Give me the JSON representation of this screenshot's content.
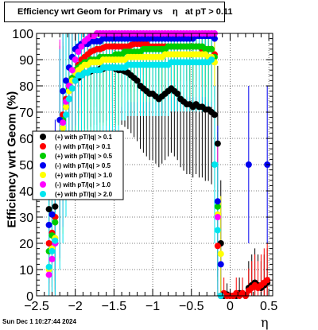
{
  "title": "Efficiency wrt Geom for Primary vs    η   at pT > 0.11",
  "timestamp": "Sun Dec  1 10:27:44 2024",
  "chart_data": {
    "type": "scatter",
    "title": "Efficiency wrt Geom for Primary vs    η   at pT > 0.11",
    "xlabel": "η",
    "ylabel": "Efficiency wrt Geom (%)",
    "xlim": [
      -2.5,
      0.55
    ],
    "ylim": [
      0,
      100
    ],
    "xticks": [
      -2.5,
      -2,
      -1.5,
      -1,
      -0.5,
      0,
      0.5
    ],
    "xtick_labels": [
      "−2.5",
      "−2",
      "−1.5",
      "−1",
      "−0.5",
      "0",
      "0.5"
    ],
    "yticks": [
      0,
      10,
      20,
      30,
      40,
      50,
      60,
      70,
      80,
      90,
      100
    ],
    "ytick_labels": [
      "0",
      "10",
      "20",
      "30",
      "40",
      "50",
      "60",
      "70",
      "80",
      "90",
      "100"
    ],
    "grid": true,
    "legend_position": "middle-left",
    "series": [
      {
        "name": "(+) with pT/|q| > 0.1",
        "color": "#000000",
        "marker": "circle",
        "x": [
          -2.34,
          -2.3,
          -2.26,
          -2.2,
          -2.16,
          -2.12,
          -2.08,
          -2.04,
          -2.0,
          -1.96,
          -1.92,
          -1.88,
          -1.84,
          -1.8,
          -1.76,
          -1.72,
          -1.68,
          -1.64,
          -1.6,
          -1.56,
          -1.52,
          -1.48,
          -1.44,
          -1.4,
          -1.36,
          -1.32,
          -1.28,
          -1.24,
          -1.2,
          -1.16,
          -1.12,
          -1.08,
          -1.04,
          -1.0,
          -0.96,
          -0.92,
          -0.88,
          -0.84,
          -0.8,
          -0.76,
          -0.72,
          -0.68,
          -0.64,
          -0.6,
          -0.56,
          -0.52,
          -0.48,
          -0.44,
          -0.4,
          -0.36,
          -0.32,
          -0.28,
          -0.24,
          -0.2,
          -0.16,
          -0.12,
          -0.08,
          -0.04,
          0.0,
          0.04,
          0.08,
          0.12,
          0.16,
          0.2,
          0.24,
          0.28,
          0.32,
          0.36,
          0.4,
          0.44,
          0.48
        ],
        "y": [
          33,
          31,
          34,
          55,
          67,
          72,
          75,
          79,
          82,
          83,
          84,
          85,
          85,
          85.5,
          86,
          86,
          86.5,
          86.5,
          87,
          87,
          87,
          86.5,
          86,
          86,
          85.5,
          85,
          84,
          83,
          82,
          80,
          79,
          78,
          77,
          77,
          76,
          75,
          76,
          77,
          78,
          79,
          78,
          77,
          75,
          74,
          73,
          73,
          72,
          73,
          72,
          72,
          71,
          71,
          70,
          69,
          58,
          20,
          0,
          0.5,
          0,
          0,
          0,
          1,
          1,
          0,
          3,
          4,
          5,
          4,
          3,
          4,
          5
        ]
      },
      {
        "name": "(-) with pT/|q| > 0.1",
        "color": "#ff0000",
        "marker": "circle",
        "x": [
          -2.34,
          -2.3,
          -2.26,
          -2.2,
          -2.16,
          -2.12,
          -2.08,
          -2.04,
          -2.0,
          -1.96,
          -1.92,
          -1.88,
          -1.84,
          -1.8,
          -1.76,
          -1.72,
          -1.68,
          -1.64,
          -1.6,
          -1.56,
          -1.52,
          -1.48,
          -1.44,
          -1.4,
          -1.36,
          -1.32,
          -1.28,
          -1.24,
          -1.2,
          -1.16,
          -1.12,
          -1.08,
          -1.04,
          -1.0,
          -0.96,
          -0.92,
          -0.88,
          -0.84,
          -0.8,
          -0.76,
          -0.72,
          -0.68,
          -0.64,
          -0.6,
          -0.56,
          -0.52,
          -0.48,
          -0.44,
          -0.4,
          -0.36,
          -0.32,
          -0.28,
          -0.24,
          -0.2,
          -0.16,
          -0.12,
          -0.08,
          -0.04,
          0.0,
          0.04,
          0.08,
          0.12,
          0.16,
          0.2,
          0.24,
          0.28,
          0.32,
          0.36,
          0.4,
          0.44,
          0.48
        ],
        "y": [
          20,
          24,
          30,
          60,
          69,
          75,
          80,
          83,
          86,
          88,
          90,
          91,
          92,
          93,
          93.5,
          94,
          94,
          94.5,
          95,
          95,
          95,
          95,
          95,
          95,
          95,
          95,
          95.5,
          96,
          96,
          96,
          96,
          96,
          95,
          95,
          95,
          95,
          95,
          95,
          95,
          95,
          95,
          95,
          95,
          95,
          95,
          95,
          95,
          95,
          95,
          94,
          94,
          94,
          94,
          92,
          19,
          0,
          1,
          0,
          0,
          0,
          1,
          0,
          1,
          0,
          2,
          3,
          4,
          3,
          4,
          5,
          6
        ]
      },
      {
        "name": "(+) with pT/|q| > 0.5",
        "color": "#00cc00",
        "marker": "circle",
        "x": [
          -2.34,
          -2.3,
          -2.26,
          -2.2,
          -2.16,
          -2.12,
          -2.08,
          -2.04,
          -2.0,
          -1.96,
          -1.92,
          -1.88,
          -1.84,
          -1.8,
          -1.76,
          -1.72,
          -1.68,
          -1.64,
          -1.6,
          -1.56,
          -1.52,
          -1.48,
          -1.44,
          -1.4,
          -1.36,
          -1.32,
          -1.28,
          -1.24,
          -1.2,
          -1.16,
          -1.12,
          -1.08,
          -1.04,
          -1.0,
          -0.96,
          -0.92,
          -0.88,
          -0.84,
          -0.8,
          -0.76,
          -0.72,
          -0.68,
          -0.64,
          -0.6,
          -0.56,
          -0.52,
          -0.48,
          -0.44,
          -0.4,
          -0.36,
          -0.32,
          -0.28,
          -0.24,
          -0.2,
          -0.16,
          -0.12
        ],
        "y": [
          17,
          23,
          28,
          58,
          67,
          74,
          79,
          83,
          86,
          87,
          88,
          89,
          89,
          90,
          90,
          90,
          91,
          91,
          91,
          91,
          91,
          92,
          92,
          92,
          93,
          93,
          93,
          93,
          93,
          93,
          94,
          94,
          94,
          94,
          94,
          94,
          94,
          94,
          95,
          95,
          95,
          95,
          95,
          95,
          95,
          95,
          95,
          95,
          95,
          95,
          94,
          94,
          94,
          91,
          34,
          0
        ]
      },
      {
        "name": "(-) with pT/|q| > 0.5",
        "color": "#0000ee",
        "marker": "circle",
        "x": [
          -2.34,
          -2.3,
          -2.26,
          -2.2,
          -2.16,
          -2.12,
          -2.08,
          -2.04,
          -2.0,
          -1.96,
          -1.92,
          -1.88,
          -1.84,
          -1.8,
          -1.76,
          -1.72,
          -1.68,
          -1.64,
          -1.6,
          -1.56,
          -1.52,
          -1.48,
          -1.44,
          -1.4,
          -1.36,
          -1.32,
          -1.28,
          -1.24,
          -1.2,
          -1.16,
          -1.12,
          -1.08,
          -1.04,
          -1.0,
          -0.96,
          -0.92,
          -0.88,
          -0.84,
          -0.8,
          -0.76,
          -0.72,
          -0.68,
          -0.64,
          -0.6,
          -0.56,
          -0.52,
          -0.48,
          -0.44,
          -0.4,
          -0.36,
          -0.32,
          -0.28,
          -0.24,
          -0.2,
          -0.16,
          -0.12,
          0.24,
          0.48
        ],
        "y": [
          27,
          31,
          38,
          67,
          78,
          82,
          87,
          91,
          94,
          95,
          96,
          96,
          96,
          97,
          97,
          97,
          97,
          98,
          98,
          98,
          98,
          98,
          98,
          98,
          98,
          98,
          98,
          98,
          98,
          98,
          98,
          98,
          98,
          98,
          98,
          98,
          98,
          98,
          98,
          98,
          98,
          98,
          98,
          98,
          98,
          98,
          98,
          99,
          99,
          99,
          99,
          99,
          99,
          98,
          36,
          12,
          50,
          50
        ]
      },
      {
        "name": "(+) with pT/|q| > 1.0",
        "color": "#ffff00",
        "marker": "circle",
        "x": [
          -2.34,
          -2.3,
          -2.26,
          -2.2,
          -2.16,
          -2.12,
          -2.08,
          -2.04,
          -2.0,
          -1.96,
          -1.92,
          -1.88,
          -1.84,
          -1.8,
          -1.76,
          -1.72,
          -1.68,
          -1.64,
          -1.6,
          -1.56,
          -1.52,
          -1.48,
          -1.44,
          -1.4,
          -1.36,
          -1.32,
          -1.28,
          -1.24,
          -1.2,
          -1.16,
          -1.12,
          -1.08,
          -1.04,
          -1.0,
          -0.96,
          -0.92,
          -0.88,
          -0.84,
          -0.8,
          -0.76,
          -0.72,
          -0.68,
          -0.64,
          -0.6,
          -0.56,
          -0.52,
          -0.48,
          -0.44,
          -0.4,
          -0.36,
          -0.32,
          -0.28,
          -0.24,
          -0.2,
          -0.16,
          -0.12
        ],
        "y": [
          10,
          18,
          22,
          55,
          64,
          72,
          78,
          82,
          85,
          86,
          87,
          88,
          88,
          89,
          89,
          89,
          89,
          90,
          90,
          90,
          90,
          90,
          90,
          90,
          90,
          91,
          91,
          91,
          91,
          91,
          91,
          91,
          91,
          91,
          91,
          91,
          91,
          92,
          92,
          92,
          92,
          92,
          92,
          92,
          92,
          92,
          92,
          92,
          92,
          92,
          92,
          91,
          91,
          89,
          31,
          16
        ]
      },
      {
        "name": "(-) with pT/|q| > 1.0",
        "color": "#ff00ff",
        "marker": "circle",
        "x": [
          -2.34,
          -2.3,
          -2.26,
          -2.2,
          -2.16,
          -2.12,
          -2.08,
          -2.04,
          -2.0,
          -1.96,
          -1.92,
          -1.88,
          -1.84,
          -1.8,
          -1.76,
          -1.72,
          -1.68,
          -1.64,
          -1.6,
          -1.56,
          -1.52,
          -1.48,
          -1.44,
          -1.4,
          -1.36,
          -1.32,
          -1.28,
          -1.24,
          -1.2,
          -1.16,
          -1.12,
          -1.08,
          -1.04,
          -1.0,
          -0.96,
          -0.92,
          -0.88,
          -0.84,
          -0.8,
          -0.76,
          -0.72,
          -0.68,
          -0.64,
          -0.6,
          -0.56,
          -0.52,
          -0.48,
          -0.44,
          -0.4,
          -0.36,
          -0.32,
          -0.28,
          -0.24,
          -0.2,
          -0.16,
          -0.12
        ],
        "y": [
          8,
          14,
          20,
          56,
          66,
          74,
          80,
          86,
          90,
          93,
          95,
          97,
          98,
          99,
          99,
          100,
          100,
          100,
          100,
          100,
          100,
          100,
          100,
          100,
          100,
          100,
          100,
          100,
          100,
          100,
          100,
          100,
          100,
          100,
          100,
          100,
          100,
          100,
          100,
          100,
          100,
          100,
          100,
          100,
          100,
          100,
          100,
          100,
          100,
          100,
          100,
          100,
          100,
          100,
          30,
          0
        ]
      },
      {
        "name": "(+) with pT/|q| > 2.0",
        "color": "#00e5ee",
        "marker": "circle",
        "x": [
          -2.34,
          -2.3,
          -2.26,
          -2.2,
          -2.16,
          -2.12,
          -2.08,
          -2.04,
          -2.0,
          -1.96,
          -1.92,
          -1.88,
          -1.84,
          -1.8,
          -1.76,
          -1.72,
          -1.68,
          -1.64,
          -1.6,
          -1.56,
          -1.52,
          -1.48,
          -1.44,
          -1.4,
          -1.36,
          -1.32,
          -1.28,
          -1.24,
          -1.2,
          -1.16,
          -1.12,
          -1.08,
          -1.04,
          -1.0,
          -0.96,
          -0.92,
          -0.88,
          -0.84,
          -0.8,
          -0.76,
          -0.72,
          -0.68,
          -0.64,
          -0.6,
          -0.56,
          -0.52,
          -0.48,
          -0.44,
          -0.4,
          -0.36,
          -0.32,
          -0.28,
          -0.24,
          -0.2,
          -0.16,
          -0.12
        ],
        "y": [
          11,
          17,
          21,
          52,
          61,
          69,
          75,
          79,
          82,
          84,
          84,
          85,
          85,
          86,
          86,
          86,
          86,
          87,
          87,
          87,
          87,
          87,
          87,
          87,
          87,
          88,
          88,
          88,
          88,
          88,
          88,
          88,
          88,
          88,
          88,
          88,
          88,
          88,
          88,
          89,
          89,
          89,
          89,
          89,
          89,
          89,
          89,
          89,
          89,
          89,
          89,
          89,
          90,
          50,
          25,
          0
        ]
      }
    ]
  }
}
